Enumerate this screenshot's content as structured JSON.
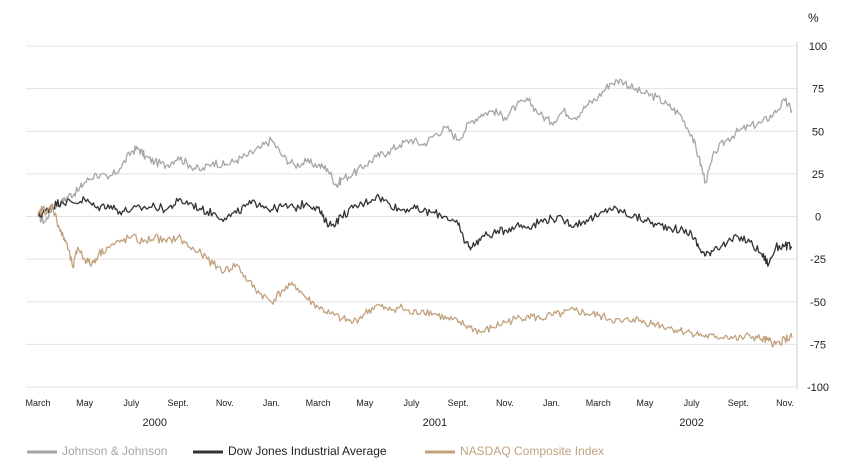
{
  "chart_data": {
    "type": "line",
    "ylabel": "%",
    "ylim": [
      -100,
      100
    ],
    "y_ticks": [
      "100",
      "75",
      "50",
      "25",
      "0",
      "-25",
      "-50",
      "-75",
      "-100"
    ],
    "x_tick_labels": [
      "March",
      "May",
      "July",
      "Sept.",
      "Nov.",
      "Jan.",
      "March",
      "May",
      "July",
      "Sept.",
      "Nov.",
      "Jan.",
      "March",
      "May",
      "July",
      "Sept.",
      "Nov."
    ],
    "x_tick_months": [
      0,
      2,
      4,
      6,
      8,
      10,
      12,
      14,
      16,
      18,
      20,
      22,
      24,
      26,
      28,
      30,
      32
    ],
    "years": [
      {
        "label": "2000",
        "month": 5
      },
      {
        "label": "2001",
        "month": 17
      },
      {
        "label": "2002",
        "month": 28
      }
    ],
    "xlim": [
      0,
      32.3
    ],
    "x_unit": "months since March 2000",
    "grid": true,
    "legend_position": "bottom",
    "series": [
      {
        "name": "Johnson & Johnson",
        "color": "#a6a6a6",
        "x": [
          0,
          0.3,
          0.6,
          1,
          1.3,
          1.7,
          2,
          2.5,
          3,
          3.5,
          4,
          4.3,
          4.6,
          5,
          5.5,
          6,
          6.5,
          7,
          7.5,
          8,
          8.5,
          9,
          9.5,
          10,
          10.5,
          11,
          11.5,
          12,
          12.4,
          12.8,
          13,
          13.5,
          14,
          14.5,
          15,
          15.5,
          16,
          16.5,
          17,
          17.5,
          18,
          18.5,
          19,
          19.5,
          20,
          20.5,
          21,
          21.5,
          22,
          22.5,
          23,
          23.5,
          24,
          24.5,
          25,
          25.5,
          26,
          26.5,
          27,
          27.5,
          28,
          28.3,
          28.6,
          29,
          29.5,
          30,
          30.5,
          31,
          31.5,
          32,
          32.3
        ],
        "y": [
          0,
          -3,
          5,
          8,
          12,
          15,
          20,
          25,
          22,
          28,
          38,
          40,
          35,
          32,
          30,
          35,
          30,
          27,
          32,
          30,
          33,
          36,
          40,
          45,
          35,
          30,
          32,
          30,
          28,
          18,
          22,
          25,
          30,
          35,
          38,
          42,
          45,
          42,
          48,
          52,
          45,
          55,
          60,
          62,
          58,
          65,
          68,
          60,
          55,
          62,
          58,
          65,
          70,
          78,
          80,
          75,
          72,
          70,
          65,
          60,
          48,
          35,
          20,
          38,
          45,
          50,
          53,
          55,
          60,
          68,
          62
        ]
      },
      {
        "name": "Dow Jones Industrial Average",
        "color": "#333333",
        "x": [
          0,
          0.3,
          0.6,
          1,
          1.5,
          2,
          2.5,
          3,
          3.5,
          4,
          4.5,
          5,
          5.5,
          6,
          6.5,
          7,
          7.5,
          8,
          8.5,
          9,
          9.5,
          10,
          10.5,
          11,
          11.5,
          12,
          12.3,
          12.6,
          13,
          13.5,
          14,
          14.5,
          15,
          15.5,
          16,
          16.5,
          17,
          17.5,
          18,
          18.3,
          18.6,
          19,
          19.5,
          20,
          20.5,
          21,
          21.5,
          22,
          22.5,
          23,
          23.5,
          24,
          24.5,
          25,
          25.5,
          26,
          26.5,
          27,
          27.5,
          28,
          28.3,
          28.6,
          29,
          29.5,
          30,
          30.5,
          31,
          31.3,
          31.6,
          32,
          32.3
        ],
        "y": [
          0,
          3,
          6,
          9,
          8,
          10,
          5,
          7,
          3,
          4,
          5,
          6,
          4,
          9,
          8,
          4,
          2,
          -1,
          2,
          7,
          8,
          4,
          6,
          5,
          8,
          5,
          -3,
          -5,
          0,
          5,
          8,
          12,
          8,
          4,
          5,
          3,
          2,
          0,
          -5,
          -15,
          -18,
          -12,
          -10,
          -8,
          -5,
          -6,
          -3,
          -1,
          -2,
          -5,
          -2,
          0,
          5,
          3,
          0,
          -2,
          -5,
          -6,
          -8,
          -10,
          -18,
          -23,
          -18,
          -16,
          -12,
          -15,
          -22,
          -28,
          -18,
          -17,
          -18
        ]
      },
      {
        "name": "NASDAQ Composite Index",
        "color": "#c2a27e",
        "x": [
          0,
          0.2,
          0.4,
          0.6,
          0.8,
          1,
          1.2,
          1.5,
          1.7,
          2,
          2.3,
          2.6,
          3,
          3.5,
          4,
          4.5,
          5,
          5.5,
          6,
          6.5,
          7,
          7.5,
          8,
          8.5,
          9,
          9.5,
          10,
          10.5,
          11,
          11.5,
          12,
          12.5,
          13,
          13.5,
          14,
          14.5,
          15,
          15.5,
          16,
          16.5,
          17,
          17.5,
          18,
          18.5,
          19,
          19.5,
          20,
          20.5,
          21,
          21.5,
          22,
          22.5,
          23,
          23.5,
          24,
          24.5,
          25,
          25.5,
          26,
          26.5,
          27,
          27.5,
          28,
          28.5,
          29,
          29.5,
          30,
          30.5,
          31,
          31.3,
          31.6,
          32,
          32.3
        ],
        "y": [
          0,
          5,
          2,
          7,
          -2,
          -10,
          -15,
          -30,
          -18,
          -25,
          -28,
          -22,
          -18,
          -15,
          -12,
          -15,
          -12,
          -15,
          -12,
          -18,
          -22,
          -28,
          -32,
          -28,
          -38,
          -45,
          -50,
          -43,
          -40,
          -48,
          -53,
          -57,
          -60,
          -62,
          -57,
          -52,
          -55,
          -53,
          -57,
          -55,
          -57,
          -60,
          -62,
          -65,
          -68,
          -65,
          -62,
          -60,
          -58,
          -60,
          -58,
          -57,
          -55,
          -57,
          -58,
          -60,
          -62,
          -60,
          -62,
          -63,
          -65,
          -67,
          -68,
          -70,
          -71,
          -70,
          -72,
          -70,
          -72,
          -73,
          -75,
          -72,
          -71
        ]
      }
    ]
  }
}
